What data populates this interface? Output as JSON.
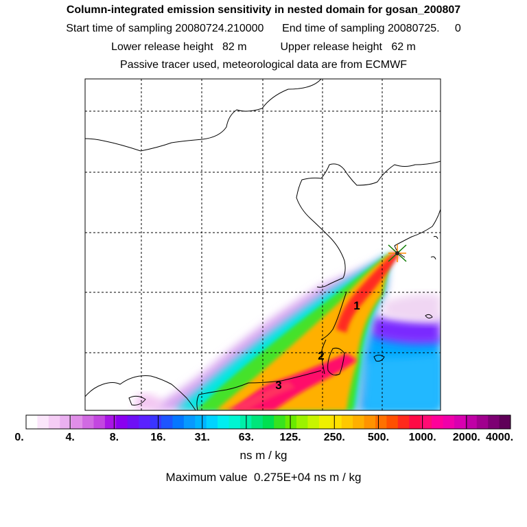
{
  "header": {
    "title": "Column-integrated emission sensitivity in nested domain for gosan_200807",
    "sampling": "Start time of sampling 20080724.210000      End time of sampling 20080725.     0",
    "release": "Lower release height   82 m           Upper release height   62 m",
    "tracer": "Passive tracer used, meteorological data are from ECMWF"
  },
  "map": {
    "labels": [
      "1",
      "2",
      "3"
    ],
    "receptor_marker": "star-marker"
  },
  "colorbar": {
    "tick_labels": [
      "0.",
      "4.",
      "8.",
      "16.",
      "31.",
      "63.",
      "125.",
      "250.",
      "500.",
      "1000.",
      "2000.",
      "4000."
    ],
    "colors": [
      "#ffffff",
      "#fbe6fb",
      "#f5cdf5",
      "#eab0f0",
      "#e08ee8",
      "#d16ae2",
      "#c346e0",
      "#a915e6",
      "#8a00f0",
      "#6e10f5",
      "#5a22ff",
      "#3a35ff",
      "#1d55ff",
      "#0577ff",
      "#0799ff",
      "#00b4ff",
      "#00d3ff",
      "#00eef0",
      "#00f5d2",
      "#00f0a8",
      "#00e57b",
      "#00e050",
      "#38e31f",
      "#6aea00",
      "#9cf200",
      "#c8f400",
      "#eef000",
      "#ffe100",
      "#ffc800",
      "#ffaf00",
      "#ff9300",
      "#ff7100",
      "#ff5000",
      "#ff2a1c",
      "#ff0a45",
      "#ff0c74",
      "#ff0099",
      "#f000aa",
      "#d800b0",
      "#c000a6",
      "#a0008e",
      "#7d0073",
      "#5f0058"
    ],
    "units": "ns m / kg"
  },
  "footer": {
    "max_value": "Maximum value  0.275E+04 ns m / kg"
  }
}
